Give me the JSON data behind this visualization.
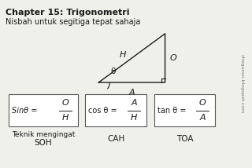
{
  "title": "Chapter 15: Trigonometri",
  "subtitle": "Nisbah untuk segitiga tepat sahaja",
  "background_color": "#f0f0eb",
  "triangle": {
    "label_H": "H",
    "label_O": "O",
    "label_A": "A",
    "label_theta": "θ"
  },
  "formulas": [
    {
      "prefix": "Sinθ =",
      "num": "O",
      "den": "H",
      "italic_prefix": true
    },
    {
      "prefix": "cos θ =",
      "num": "A",
      "den": "H",
      "italic_prefix": false
    },
    {
      "prefix": "tan θ =",
      "num": "O",
      "den": "A",
      "italic_prefix": false
    }
  ],
  "box_labels": [
    "SOH",
    "CAH",
    "TOA"
  ],
  "teknik": "Teknik mengingat",
  "watermark": "cheguzan.blogspot.com",
  "text_color": "#1a1a1a",
  "box_color": "#ffffff",
  "box_edge_color": "#555555"
}
